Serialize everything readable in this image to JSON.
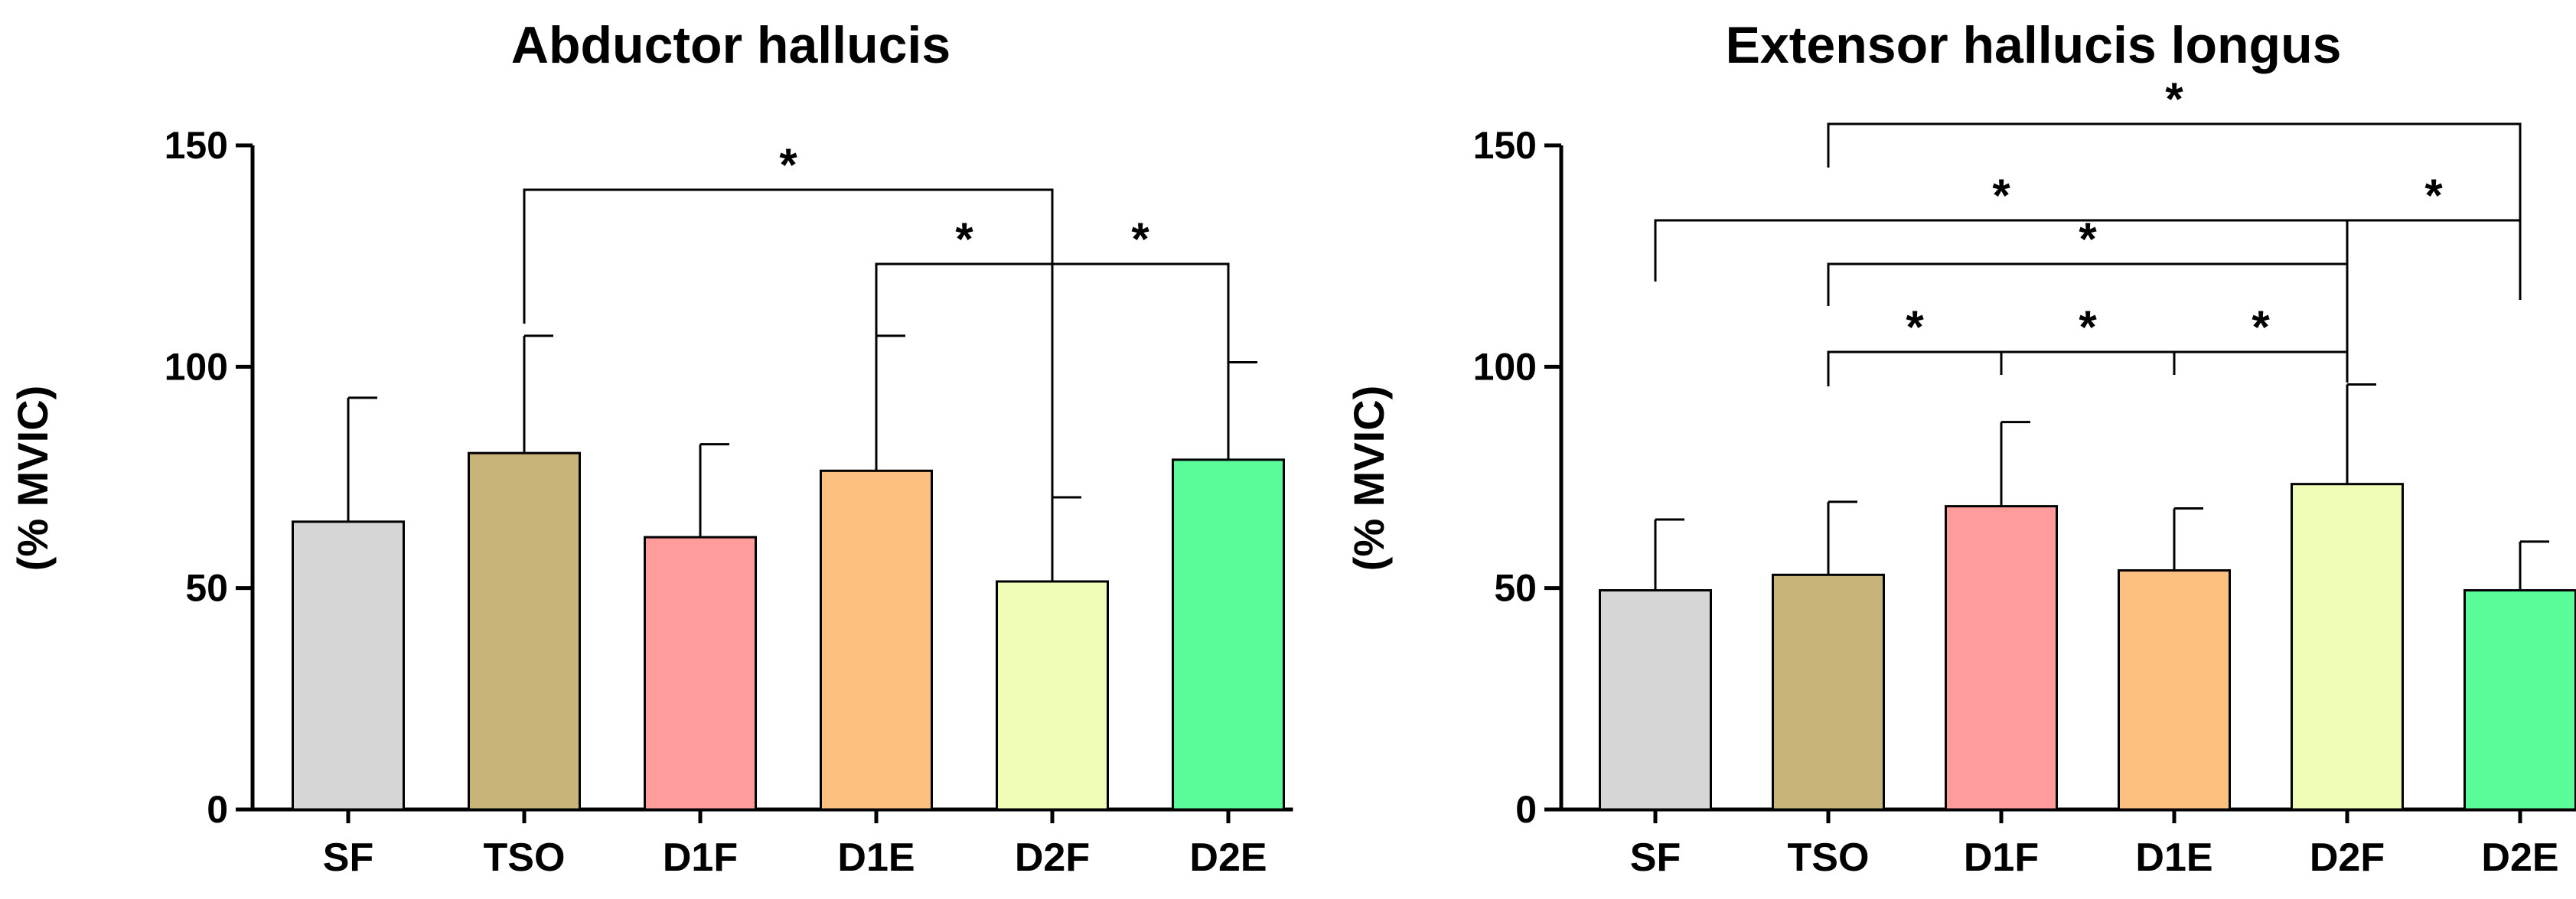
{
  "chart_data": [
    {
      "type": "bar",
      "title": "Abductor hallucis",
      "xlabel": "",
      "ylabel": "(% MVIC)",
      "ylim": [
        0,
        150
      ],
      "yticks": [
        "0",
        "50",
        "100",
        "150"
      ],
      "categories": [
        "SF",
        "TSO",
        "D1F",
        "D1E",
        "D2F",
        "D2E"
      ],
      "values": [
        65,
        80.5,
        61.5,
        76.5,
        51.5,
        79
      ],
      "errors": [
        28,
        26.5,
        21,
        30.5,
        19,
        22
      ],
      "colors": [
        "#d6d6d6",
        "#c8b478",
        "#fe9c9c",
        "#fec080",
        "#eefcb5",
        "#59fc98"
      ],
      "significance": [
        {
          "from": "TSO",
          "to": "D2F",
          "label": "*"
        },
        {
          "from": "D1E",
          "to": "D2F",
          "label": "*"
        },
        {
          "from": "D2F",
          "to": "D2E",
          "label": "*"
        }
      ]
    },
    {
      "type": "bar",
      "title": "Extensor hallucis longus",
      "xlabel": "",
      "ylabel": "(% MVIC)",
      "ylim": [
        0,
        150
      ],
      "yticks": [
        "0",
        "50",
        "100",
        "150"
      ],
      "categories": [
        "SF",
        "TSO",
        "D1F",
        "D1E",
        "D2F",
        "D2E"
      ],
      "values": [
        49.5,
        53,
        68.5,
        54,
        73.5,
        49.5
      ],
      "errors": [
        16,
        16.5,
        19,
        14,
        22.5,
        11
      ],
      "colors": [
        "#d6d6d6",
        "#c8b478",
        "#fe9c9c",
        "#fec080",
        "#eefcb5",
        "#59fc98"
      ],
      "significance": [
        {
          "from": "TSO",
          "to": "D2E",
          "label": "*"
        },
        {
          "from": "SF",
          "to": "D2F",
          "label": "*"
        },
        {
          "from": "D2F",
          "to": "D2E",
          "label": "*"
        },
        {
          "from": "TSO",
          "to": "D2F",
          "label": "*"
        },
        {
          "from": "TSO",
          "to": "D1F",
          "label": "*"
        },
        {
          "from": "D1F",
          "to": "D1E",
          "label": "*"
        },
        {
          "from": "D1E",
          "to": "D2F",
          "label": "*"
        }
      ]
    }
  ]
}
